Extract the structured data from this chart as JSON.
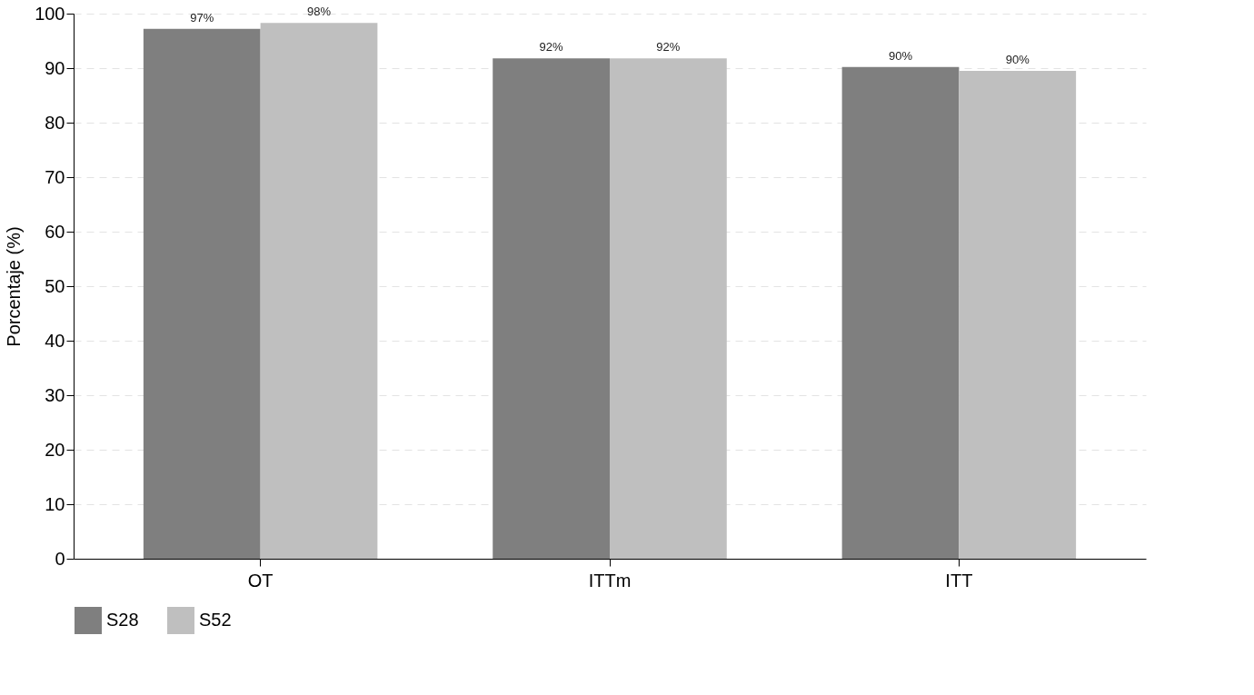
{
  "chart_data": {
    "type": "bar",
    "ylabel": "Porcentaje (%)",
    "categories": [
      "OT",
      "ITTm",
      "ITT"
    ],
    "series": [
      {
        "name": "S28",
        "color": "#7f7f7f",
        "values": [
          97.2,
          91.8,
          90.2
        ],
        "value_labels": [
          "97%",
          "92%",
          "90%"
        ]
      },
      {
        "name": "S52",
        "color": "#bfbfbf",
        "values": [
          98.3,
          91.8,
          89.5
        ],
        "value_labels": [
          "98%",
          "92%",
          "90%"
        ]
      }
    ],
    "ylim": [
      0,
      100
    ],
    "yticks": [
      0,
      10,
      20,
      30,
      40,
      50,
      60,
      70,
      80,
      90,
      100
    ],
    "grid": "y",
    "legend": "bottom"
  }
}
